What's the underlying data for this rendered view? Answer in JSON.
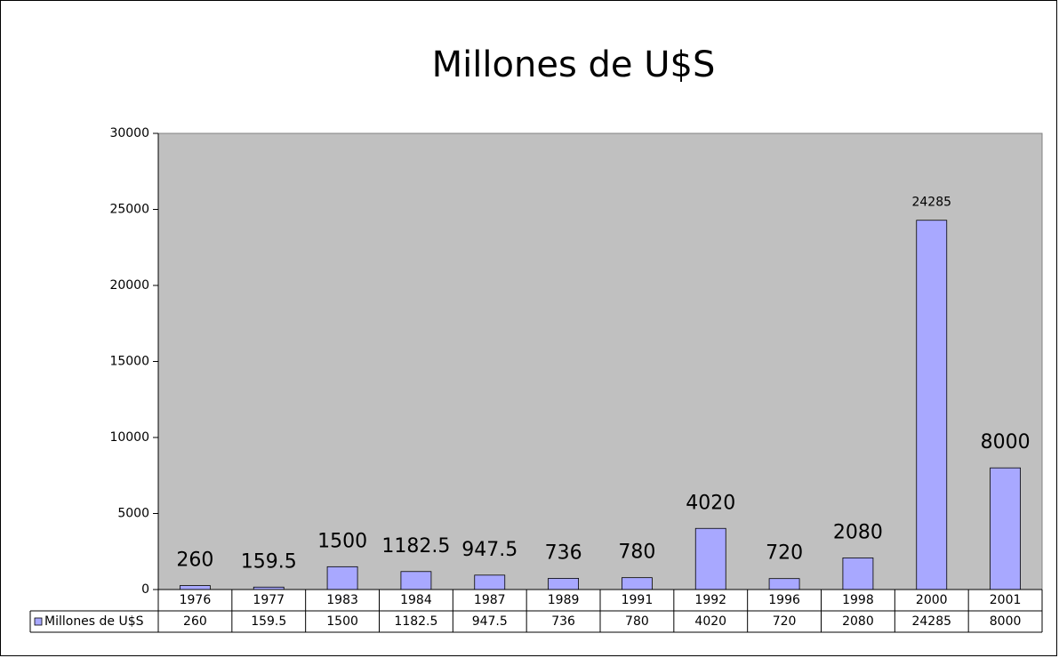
{
  "chart_data": {
    "type": "bar",
    "title": "Millones de U$S",
    "categories": [
      "1976",
      "1977",
      "1983",
      "1984",
      "1987",
      "1989",
      "1991",
      "1992",
      "1996",
      "1998",
      "2000",
      "2001"
    ],
    "series": [
      {
        "name": "Millones de U$S",
        "color": "#a8a8ff",
        "values": [
          260,
          159.5,
          1500,
          1182.5,
          947.5,
          736,
          780,
          4020,
          720,
          2080,
          24285,
          8000
        ]
      }
    ],
    "ylim": [
      0,
      30000
    ],
    "yticks": [
      0,
      5000,
      10000,
      15000,
      20000,
      25000,
      30000
    ],
    "data_table": true
  }
}
